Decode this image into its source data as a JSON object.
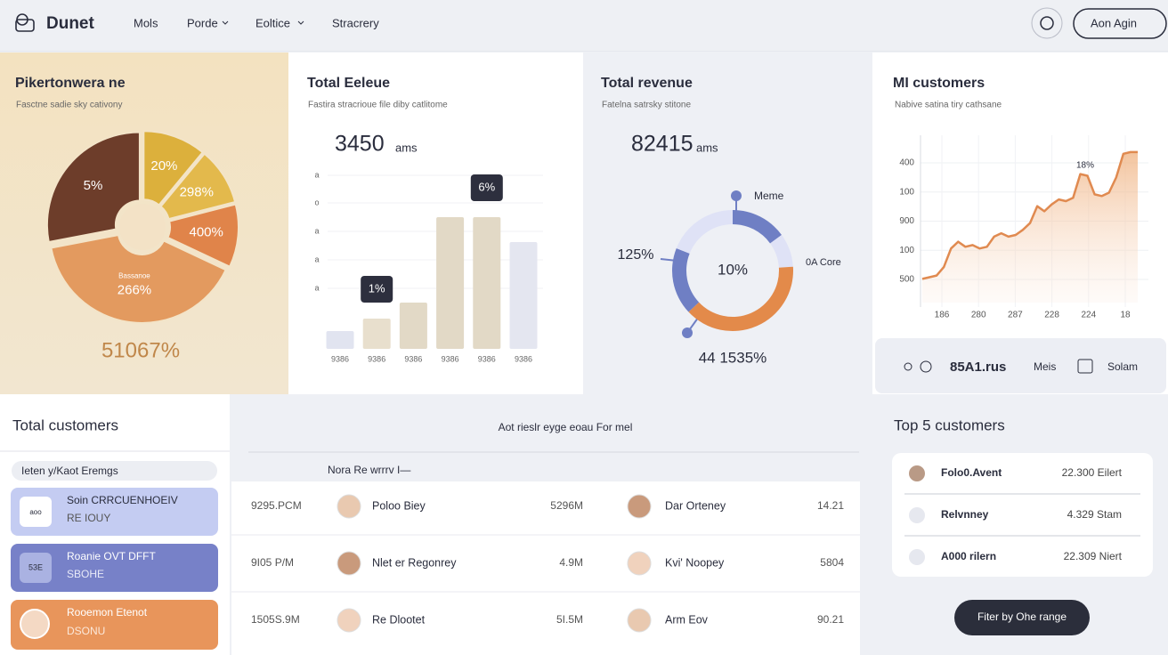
{
  "header": {
    "logo": "Dunet",
    "nav": [
      "Mols",
      "Porde",
      "Eoltice",
      "Stracrery"
    ],
    "button": "Aon Agin"
  },
  "pie_card": {
    "type": "pie",
    "title": "Pikertonwera ne",
    "subtitle": "Fasctne sadie sky cativony",
    "slices": [
      {
        "label": "20%",
        "value": 11,
        "color": "#dcb03c"
      },
      {
        "label": "298%",
        "value": 10,
        "color": "#e3b94c"
      },
      {
        "label": "400%",
        "value": 11,
        "color": "#e0844a"
      },
      {
        "label": "266%",
        "value": 40,
        "color": "#e39a5f",
        "note": "Bassanoe"
      },
      {
        "label": "5%",
        "value": 28,
        "color": "#6d3d2a"
      }
    ],
    "footer": "51067%"
  },
  "bar_card": {
    "type": "bar",
    "title": "Total Eeleue",
    "subtitle": "Fastira stracrioue file diby catlitome",
    "big_value": "3450",
    "big_unit": "ams",
    "categories": [
      "9386",
      "9386",
      "9386",
      "9386",
      "9386",
      "9386"
    ],
    "values": [
      20,
      34,
      52,
      148,
      148,
      120
    ],
    "value_labels": [
      null,
      "1%",
      null,
      null,
      "6%",
      null
    ],
    "colors": [
      "#e1e4f0",
      "#e8dfcd",
      "#e2d9c6",
      "#e2d9c6",
      "#e2d9c6",
      "#e4e6f0"
    ],
    "ylim": [
      0,
      200
    ],
    "yticks": [
      {
        "value": 195,
        "label": "a"
      },
      {
        "value": 164,
        "label": "o"
      },
      {
        "value": 132,
        "label": "a"
      },
      {
        "value": 100,
        "label": "a"
      },
      {
        "value": 68,
        "label": "a"
      }
    ]
  },
  "donut_card": {
    "type": "donut",
    "title": "Total revenue",
    "subtitle": "Fatelna satrsky stitone",
    "big_value": "82415",
    "big_unit": "ams",
    "segments": [
      {
        "value": 15,
        "color": "#6f7fc4"
      },
      {
        "value": 9,
        "color": "#dfe2f6"
      },
      {
        "value": 39,
        "color": "#e38a4a"
      },
      {
        "value": 18,
        "color": "#6f7fc4"
      },
      {
        "value": 19,
        "color": "#dfe2f6"
      }
    ],
    "labels": {
      "top": "Meme",
      "left": "125%",
      "right": "0A Core",
      "center": "10%",
      "bottom": "44 1535%"
    }
  },
  "line_card": {
    "type": "line",
    "title": "MI customers",
    "subtitle": "Nabive satina tiry cathsane",
    "y_labels": [
      "400",
      "100",
      "900",
      "100",
      "500"
    ],
    "x_labels": [
      "186",
      "280",
      "287",
      "228",
      "224",
      "18"
    ],
    "annotation": "18%",
    "ylim": [
      0,
      100
    ],
    "color": "#e08a50",
    "values": [
      14,
      15,
      16,
      21,
      32,
      36,
      33,
      34,
      32,
      33,
      39,
      41,
      39,
      40,
      43,
      47,
      57,
      54,
      58,
      61,
      60,
      62,
      76,
      75,
      64,
      63,
      65,
      74,
      88,
      89,
      89
    ]
  },
  "stats_strip": {
    "value": "85A1.rus",
    "item1": "Meis",
    "item2": "Solam"
  },
  "customers_list": {
    "title": "Total customers",
    "search": "Ieten y/Kaot Eremgs",
    "cards": [
      {
        "icon": "aoo",
        "name": "Soin CRRCUENHOEIV",
        "sub": "RE IOUY"
      },
      {
        "icon": "53E",
        "name": "Roanie OVT DFFT",
        "sub": "SBOHE"
      },
      {
        "name": "Rooemon Etenot",
        "sub": "DSONU"
      }
    ]
  },
  "activity_table": {
    "heading": "Aot rieslr eyge eoau For mel",
    "column": "Nora Re wrrrv I—",
    "rows": [
      [
        "9295.PCM",
        "Poloo Biey",
        "5296M",
        "Dar Orteney",
        "14.21"
      ],
      [
        "9I05 P/M",
        "Nlet er Regonrey",
        "4.9M",
        "Kvi' Noopey",
        "5804"
      ],
      [
        "1505S.9M",
        "Re Dlootet",
        "5I.5M",
        "Arm Eov",
        "90.21"
      ]
    ]
  },
  "top_customers": {
    "title": "Top 5 customers",
    "rows": [
      [
        "Folo0.Avent",
        "22.300 Eilert"
      ],
      [
        "Relvnney",
        "4.329 Stam"
      ],
      [
        "A000 rilern",
        "22.309 Niert"
      ]
    ],
    "button": "Fiter by Ohe range"
  }
}
